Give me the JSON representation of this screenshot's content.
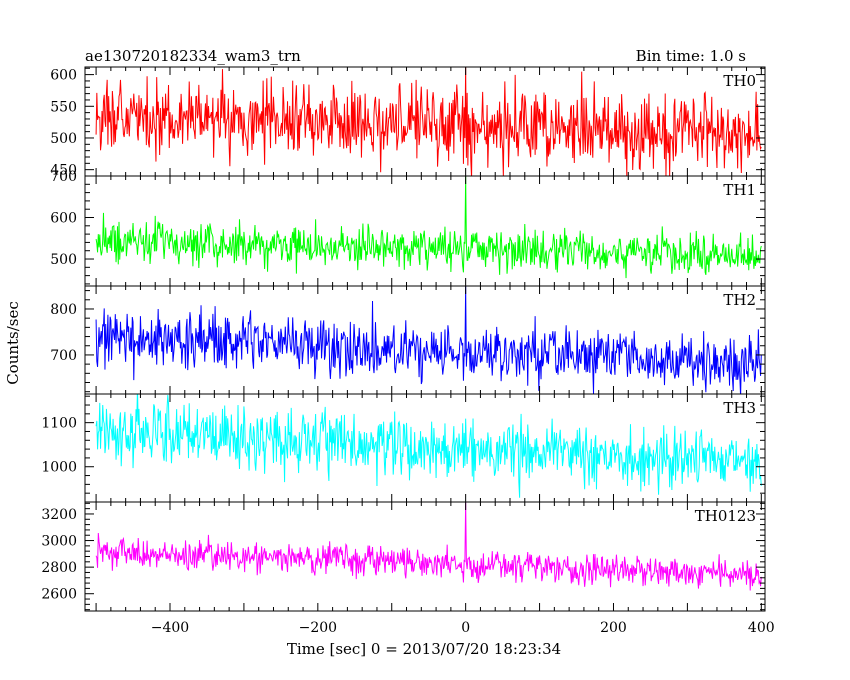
{
  "header": {
    "left_title": "ae130720182334_wam3_trn",
    "right_title": "Bin time: 1.0 s"
  },
  "axes": {
    "ylabel": "Counts/sec",
    "xlabel": "Time [sec] 0 = 2013/07/20 18:23:34",
    "xlim": [
      -515,
      405
    ],
    "xticks": [
      -400,
      -200,
      0,
      200,
      400
    ]
  },
  "chart_data": [
    {
      "type": "line",
      "name": "TH0",
      "color": "#ff0000",
      "ylim": [
        440,
        612
      ],
      "yticks": [
        450,
        500,
        550,
        600
      ],
      "x_range": [
        -500,
        400
      ],
      "bin": 1.0,
      "start_level": 535,
      "end_level": 505,
      "noise": 30,
      "spike": {
        "x": 0,
        "y": 612
      }
    },
    {
      "type": "line",
      "name": "TH1",
      "color": "#00ff00",
      "ylim": [
        435,
        700
      ],
      "yticks": [
        500,
        600,
        700
      ],
      "x_range": [
        -500,
        400
      ],
      "bin": 1.0,
      "start_level": 545,
      "end_level": 505,
      "noise": 24,
      "spike": {
        "x": 0,
        "y": 700
      }
    },
    {
      "type": "line",
      "name": "TH2",
      "color": "#0000ff",
      "ylim": [
        615,
        850
      ],
      "yticks": [
        700,
        800
      ],
      "x_range": [
        -500,
        400
      ],
      "bin": 1.0,
      "start_level": 740,
      "end_level": 680,
      "noise": 30,
      "spike": {
        "x": 0,
        "y": 850
      }
    },
    {
      "type": "line",
      "name": "TH3",
      "color": "#00ffff",
      "ylim": [
        920,
        1165
      ],
      "yticks": [
        1000,
        1100
      ],
      "x_range": [
        -500,
        400
      ],
      "bin": 1.0,
      "start_level": 1080,
      "end_level": 1010,
      "noise": 34,
      "spike": null
    },
    {
      "type": "line",
      "name": "TH0123",
      "color": "#ff00ff",
      "ylim": [
        2470,
        3290
      ],
      "yticks": [
        2600,
        2800,
        3000,
        3200
      ],
      "x_range": [
        -500,
        400
      ],
      "bin": 1.0,
      "start_level": 2915,
      "end_level": 2745,
      "noise": 55,
      "spike": {
        "x": 0,
        "y": 3290
      }
    }
  ]
}
